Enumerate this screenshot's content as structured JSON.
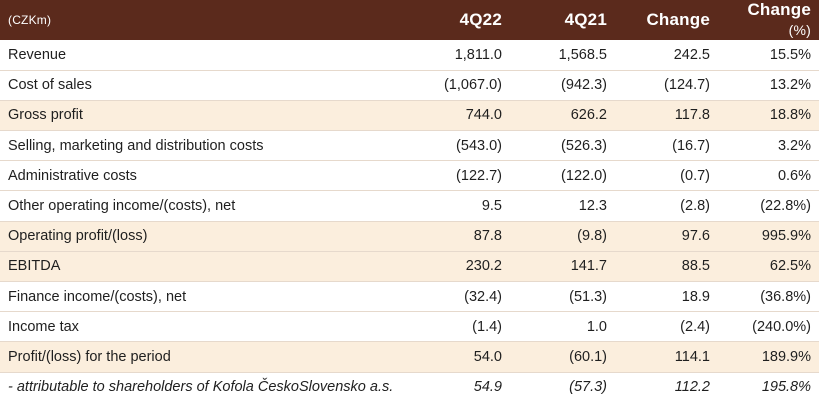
{
  "table": {
    "header": {
      "currency": "(CZKm)",
      "col_4q22": "4Q22",
      "col_4q21": "4Q21",
      "col_change": "Change",
      "col_change_pct": "Change",
      "col_change_pct_unit": "(%)"
    },
    "rows": [
      {
        "label": "Revenue",
        "q22": "1,811.0",
        "q21": "1,568.5",
        "change": "242.5",
        "pct": "15.5%"
      },
      {
        "label": "Cost of sales",
        "q22": "(1,067.0)",
        "q21": "(942.3)",
        "change": "(124.7)",
        "pct": "13.2%"
      },
      {
        "label": "Gross profit",
        "q22": "744.0",
        "q21": "626.2",
        "change": "117.8",
        "pct": "18.8%"
      },
      {
        "label": "Selling, marketing and distribution costs",
        "q22": "(543.0)",
        "q21": "(526.3)",
        "change": "(16.7)",
        "pct": "3.2%"
      },
      {
        "label": "Administrative costs",
        "q22": "(122.7)",
        "q21": "(122.0)",
        "change": "(0.7)",
        "pct": "0.6%"
      },
      {
        "label": "Other operating income/(costs), net",
        "q22": "9.5",
        "q21": "12.3",
        "change": "(2.8)",
        "pct": "(22.8%)"
      },
      {
        "label": "Operating profit/(loss)",
        "q22": "87.8",
        "q21": "(9.8)",
        "change": "97.6",
        "pct": "995.9%"
      },
      {
        "label": "EBITDA",
        "q22": "230.2",
        "q21": "141.7",
        "change": "88.5",
        "pct": "62.5%"
      },
      {
        "label": "Finance income/(costs), net",
        "q22": "(32.4)",
        "q21": "(51.3)",
        "change": "18.9",
        "pct": "(36.8%)"
      },
      {
        "label": "Income tax",
        "q22": "(1.4)",
        "q21": "1.0",
        "change": "(2.4)",
        "pct": "(240.0%)"
      },
      {
        "label": "Profit/(loss) for the period",
        "q22": "54.0",
        "q21": "(60.1)",
        "change": "114.1",
        "pct": "189.9%"
      },
      {
        "label": "- attributable to shareholders of Kofola ČeskoSlovensko a.s.",
        "q22": "54.9",
        "q21": "(57.3)",
        "change": "112.2",
        "pct": "195.8%"
      }
    ]
  },
  "colors": {
    "header_bg": "#5b2a1c",
    "highlight_row_bg": "#fbeedd",
    "row_divider": "#e6d9cc"
  }
}
